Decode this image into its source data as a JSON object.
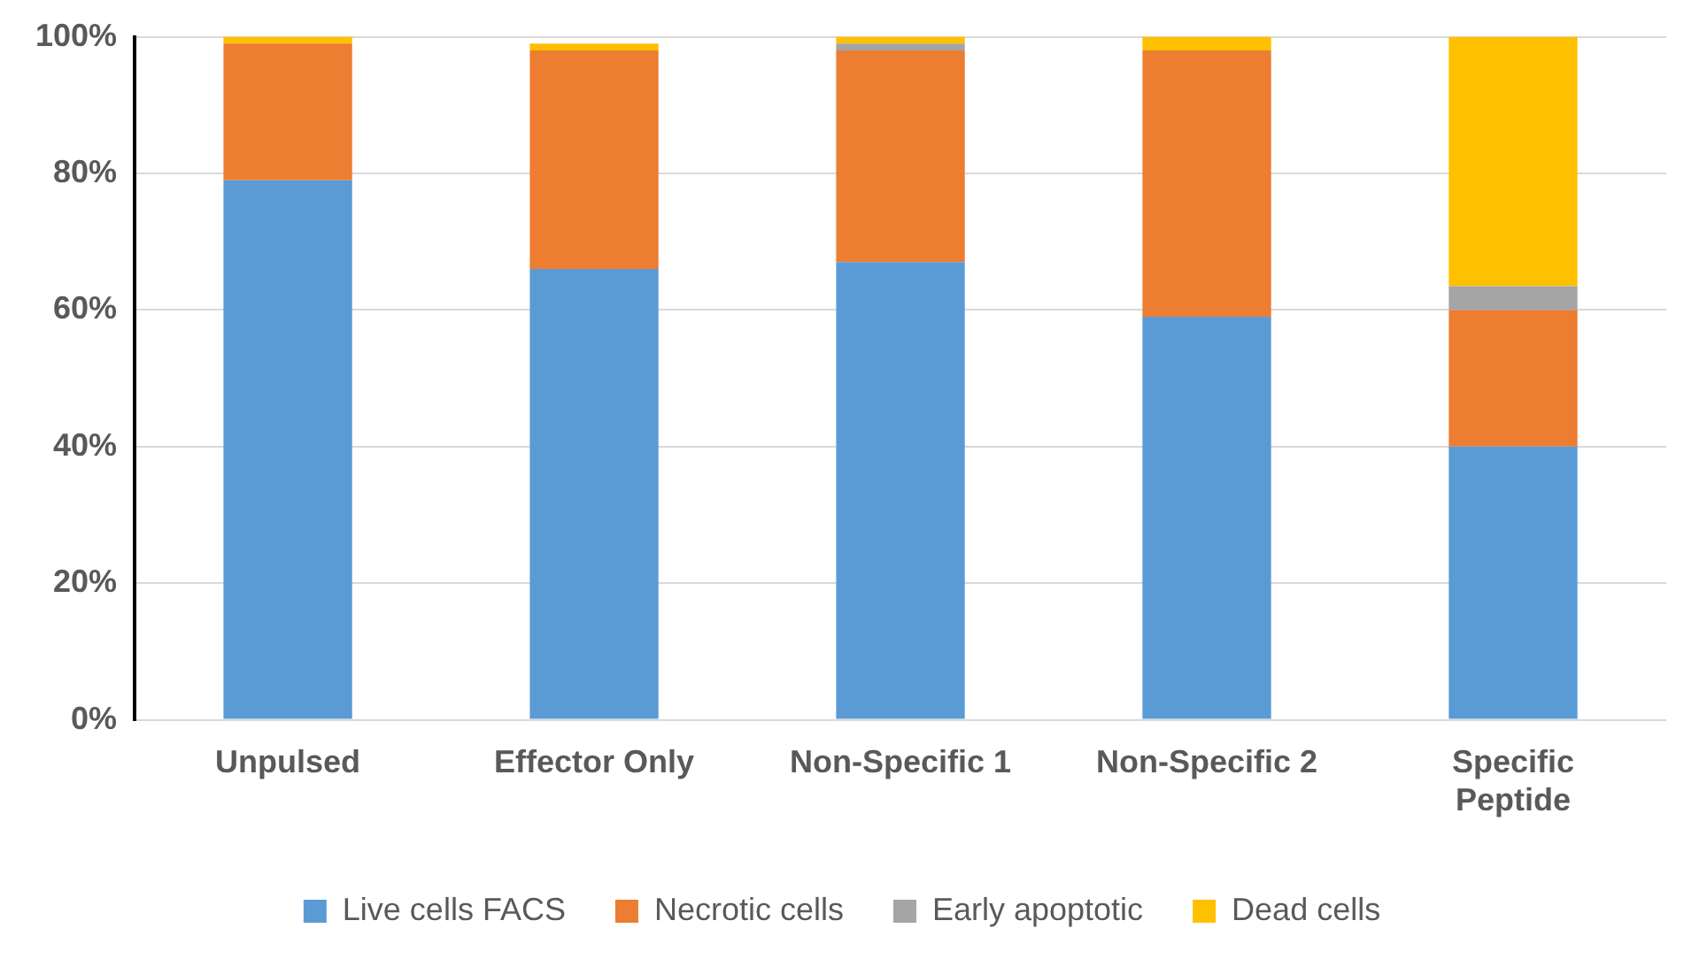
{
  "chart_data": {
    "type": "bar",
    "stacked": true,
    "categories": [
      "Unpulsed",
      "Effector Only",
      "Non-Specific 1",
      "Non-Specific 2",
      "Specific Peptide"
    ],
    "series": [
      {
        "name": "Live cells FACS",
        "color": "#5b9bd5",
        "values": [
          79,
          66,
          67,
          59,
          40
        ]
      },
      {
        "name": "Necrotic cells",
        "color": "#ed7d31",
        "values": [
          20,
          32,
          31,
          39,
          20
        ]
      },
      {
        "name": "Early apoptotic",
        "color": "#a5a5a5",
        "values": [
          0,
          0,
          1,
          0,
          3.5
        ]
      },
      {
        "name": "Dead cells",
        "color": "#ffc000",
        "values": [
          1,
          1,
          1,
          2,
          36.5
        ]
      }
    ],
    "ylim": [
      0,
      100
    ],
    "yticks": [
      {
        "value": 0,
        "label": "0%"
      },
      {
        "value": 20,
        "label": "20%"
      },
      {
        "value": 40,
        "label": "40%"
      },
      {
        "value": 60,
        "label": "60%"
      },
      {
        "value": 80,
        "label": "80%"
      },
      {
        "value": 100,
        "label": "100%"
      }
    ],
    "grid": "y",
    "legend": "bottom"
  }
}
